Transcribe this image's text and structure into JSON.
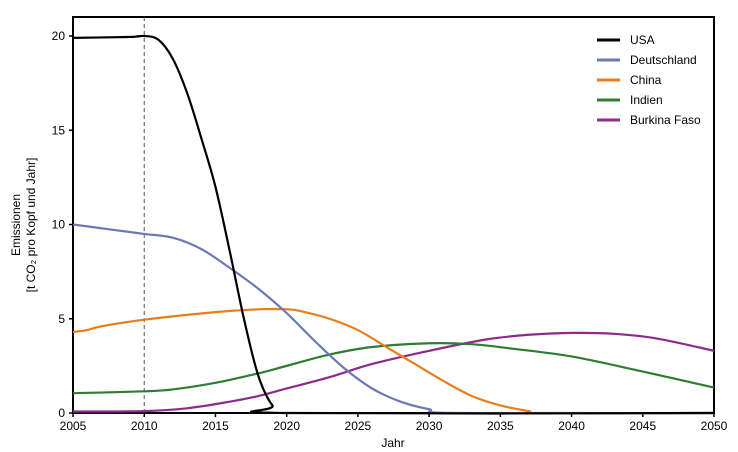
{
  "chart_data": {
    "type": "line",
    "title": "",
    "xlabel": "Jahr",
    "ylabel": "Emissionen",
    "ylabel2": "[t CO₂ pro Kopf und Jahr]",
    "xlim": [
      2005,
      2050
    ],
    "ylim": [
      0,
      21
    ],
    "xticks": [
      "2005",
      "2010",
      "2015",
      "2020",
      "2025",
      "2030",
      "2035",
      "2040",
      "2045",
      "2050"
    ],
    "yticks": [
      "0",
      "5",
      "10",
      "15",
      "20"
    ],
    "grid": false,
    "legend_position": "top-right",
    "marker_line_year": 2010,
    "series": [
      {
        "name": "USA",
        "color": "#000000",
        "x": [
          2005,
          2009,
          2010,
          2011,
          2012,
          2013,
          2014,
          2015,
          2016,
          2017,
          2018,
          2019,
          2020,
          2050
        ],
        "y": [
          19.9,
          19.95,
          20,
          19.8,
          18.8,
          17,
          14.6,
          12,
          8.6,
          5,
          2,
          0.4,
          0,
          0
        ]
      },
      {
        "name": "Deutschland",
        "color": "#6b78b4",
        "x": [
          2005,
          2008,
          2010,
          2012,
          2014,
          2016,
          2018,
          2020,
          2022,
          2024,
          2026,
          2028,
          2030,
          2032,
          2050
        ],
        "y": [
          10,
          9.7,
          9.5,
          9.3,
          8.7,
          7.7,
          6.6,
          5.3,
          3.8,
          2.4,
          1.3,
          0.6,
          0.2,
          0,
          0
        ]
      },
      {
        "name": "China",
        "color": "#e87d1e",
        "x": [
          2005,
          2006,
          2007,
          2010,
          2015,
          2018,
          2020,
          2021,
          2023,
          2025,
          2027,
          2029,
          2031,
          2033,
          2035,
          2037,
          2038,
          2050
        ],
        "y": [
          4.3,
          4.4,
          4.6,
          4.95,
          5.35,
          5.5,
          5.5,
          5.4,
          5.0,
          4.4,
          3.5,
          2.6,
          1.7,
          0.9,
          0.4,
          0.1,
          0,
          0
        ]
      },
      {
        "name": "Indien",
        "color": "#2e7d32",
        "x": [
          2005,
          2010,
          2012,
          2015,
          2018,
          2020,
          2023,
          2026,
          2030,
          2033,
          2036,
          2040,
          2045,
          2050
        ],
        "y": [
          1.05,
          1.15,
          1.25,
          1.6,
          2.1,
          2.5,
          3.1,
          3.5,
          3.7,
          3.65,
          3.4,
          3.0,
          2.2,
          1.35
        ]
      },
      {
        "name": "Burkina Faso",
        "color": "#8e2a8a",
        "x": [
          2005,
          2010,
          2013,
          2016,
          2018,
          2020,
          2023,
          2026,
          2030,
          2034,
          2037,
          2040,
          2043,
          2046,
          2050
        ],
        "y": [
          0.08,
          0.1,
          0.25,
          0.6,
          0.9,
          1.3,
          1.9,
          2.6,
          3.3,
          3.9,
          4.15,
          4.25,
          4.2,
          3.95,
          3.3
        ]
      }
    ]
  }
}
